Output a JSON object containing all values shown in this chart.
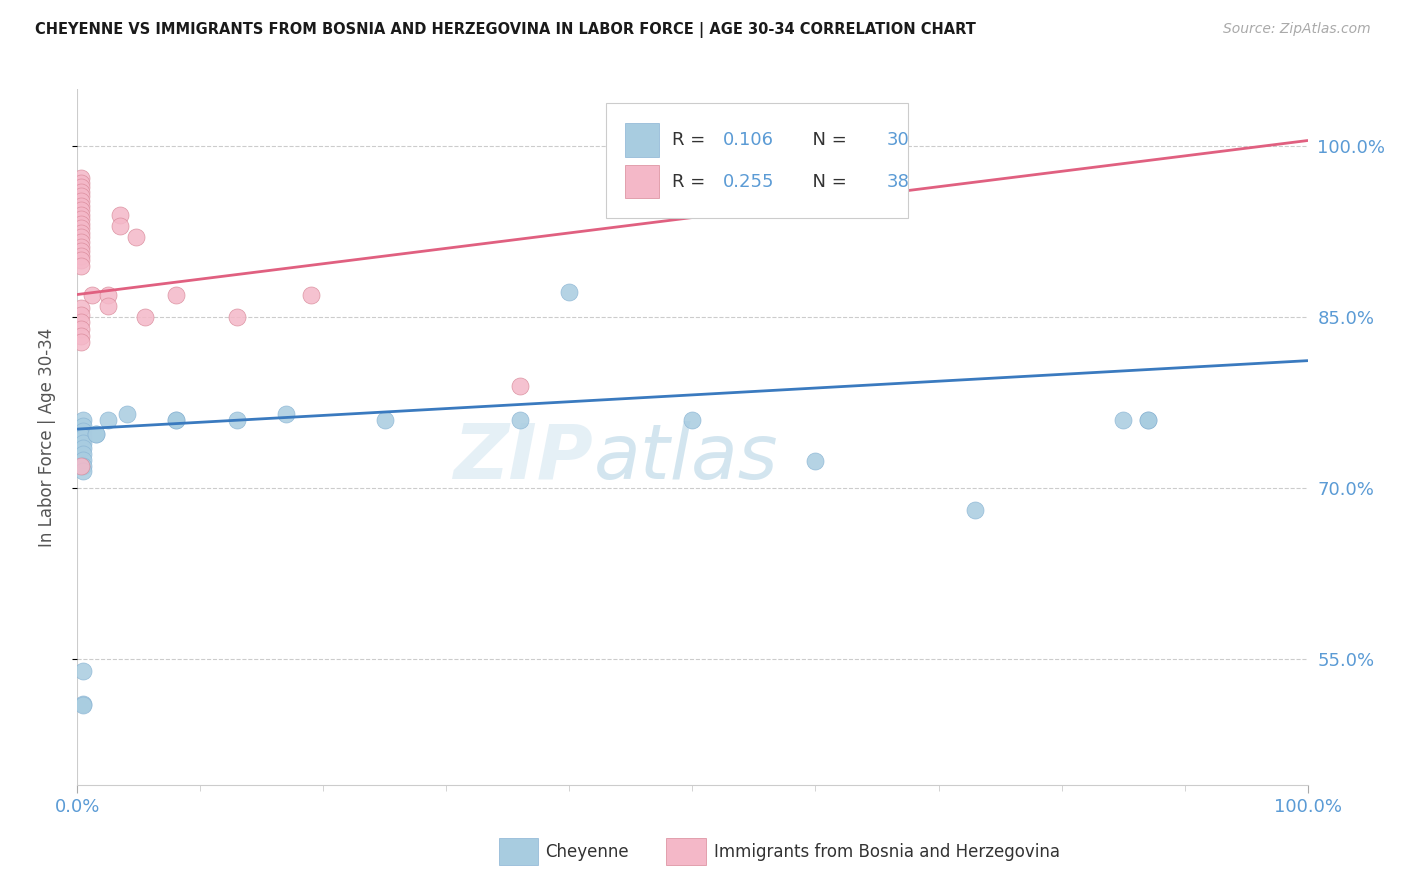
{
  "title": "CHEYENNE VS IMMIGRANTS FROM BOSNIA AND HERZEGOVINA IN LABOR FORCE | AGE 30-34 CORRELATION CHART",
  "source": "Source: ZipAtlas.com",
  "ylabel": "In Labor Force | Age 30-34",
  "watermark_left": "ZIP",
  "watermark_right": "atlas",
  "blue_color": "#a8cce0",
  "pink_color": "#f4b8c8",
  "blue_line_color": "#3a7abf",
  "pink_line_color": "#e06080",
  "blue_r": "0.106",
  "blue_n": "30",
  "pink_r": "0.255",
  "pink_n": "38",
  "blue_scatter_x": [
    0.005,
    0.005,
    0.005,
    0.005,
    0.005,
    0.005,
    0.005,
    0.005,
    0.005,
    0.005,
    0.015,
    0.015,
    0.025,
    0.04,
    0.08,
    0.08,
    0.13,
    0.17,
    0.25,
    0.36,
    0.4,
    0.5,
    0.6,
    0.73,
    0.85,
    0.87,
    0.87,
    0.005,
    0.005,
    0.005
  ],
  "blue_scatter_y": [
    0.76,
    0.755,
    0.75,
    0.745,
    0.74,
    0.735,
    0.73,
    0.725,
    0.72,
    0.715,
    0.748,
    0.748,
    0.76,
    0.765,
    0.76,
    0.76,
    0.76,
    0.765,
    0.76,
    0.76,
    0.872,
    0.76,
    0.724,
    0.681,
    0.76,
    0.76,
    0.76,
    0.511,
    0.54,
    0.51
  ],
  "pink_scatter_x": [
    0.003,
    0.003,
    0.003,
    0.003,
    0.003,
    0.003,
    0.003,
    0.003,
    0.003,
    0.003,
    0.003,
    0.003,
    0.003,
    0.003,
    0.003,
    0.003,
    0.003,
    0.003,
    0.003,
    0.003,
    0.012,
    0.025,
    0.025,
    0.035,
    0.035,
    0.048,
    0.055,
    0.08,
    0.13,
    0.19,
    0.003,
    0.003,
    0.003,
    0.003,
    0.003,
    0.003,
    0.003,
    0.36
  ],
  "pink_scatter_y": [
    0.972,
    0.968,
    0.964,
    0.96,
    0.956,
    0.952,
    0.948,
    0.944,
    0.94,
    0.936,
    0.932,
    0.928,
    0.924,
    0.92,
    0.916,
    0.912,
    0.908,
    0.904,
    0.9,
    0.895,
    0.87,
    0.87,
    0.86,
    0.94,
    0.93,
    0.92,
    0.85,
    0.87,
    0.85,
    0.87,
    0.858,
    0.852,
    0.846,
    0.84,
    0.834,
    0.828,
    0.72,
    0.79
  ],
  "blue_trend_x": [
    0.0,
    1.0
  ],
  "blue_trend_y": [
    0.752,
    0.812
  ],
  "pink_trend_x": [
    0.0,
    1.0
  ],
  "pink_trend_y": [
    0.87,
    1.005
  ],
  "xlim": [
    0.0,
    1.0
  ],
  "ylim": [
    0.44,
    1.05
  ],
  "yticks": [
    0.55,
    0.7,
    0.85,
    1.0
  ],
  "ytick_labels": [
    "55.0%",
    "70.0%",
    "85.0%",
    "100.0%"
  ],
  "xtick_labels_pos": [
    0.0,
    1.0
  ],
  "xtick_labels": [
    "0.0%",
    "100.0%"
  ],
  "bottom_label1": "Cheyenne",
  "bottom_label2": "Immigrants from Bosnia and Herzegovina",
  "grid_color": "#cccccc",
  "label_color": "#5b9bd5",
  "axis_label_color": "#888888",
  "bg_color": "#ffffff",
  "title_color": "#1a1a1a",
  "source_color": "#aaaaaa",
  "ylabel_color": "#555555"
}
